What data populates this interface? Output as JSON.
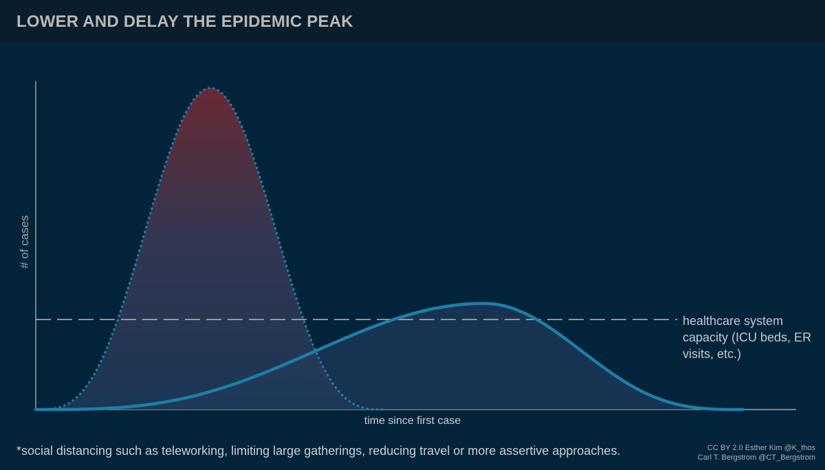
{
  "header": {
    "title": "LOWER AND DELAY THE EPIDEMIC PEAK"
  },
  "chart_data": {
    "type": "area",
    "title": "LOWER AND DELAY THE EPIDEMIC PEAK",
    "xlabel": "time since first case",
    "ylabel": "# of cases",
    "xlim": [
      0,
      100
    ],
    "ylim": [
      0,
      100
    ],
    "grid": false,
    "series": [
      {
        "style": "dotted",
        "fill": "red-to-blue gradient",
        "peak_x": 23,
        "peak_y": 100,
        "start_x": 0,
        "end_x": 46
      },
      {
        "style": "solid",
        "fill": "dark blue",
        "peak_x": 59,
        "peak_y": 33,
        "start_x": 0,
        "end_x": 93
      }
    ],
    "capacity_line": {
      "y": 28,
      "style": "dashed",
      "label": "healthcare system capacity (ICU beds, ER visits, etc.)"
    }
  },
  "capacity_label": "healthcare system capacity (ICU beds, ER visits, etc.)",
  "footnote": "*social distancing such as teleworking, limiting large gatherings, reducing travel or more assertive approaches.",
  "credit": {
    "line1": "CC BY 2.0  Esther Kim  @K_thos",
    "line2": "Carl T. Bergstrom  @CT_Bergstrom"
  },
  "colors": {
    "background": "#03233a",
    "header": "#0b1c2a",
    "curve": "#1d7fa6",
    "peak_fill_top": "#7a2a32",
    "fill_bottom": "#1e3a5a",
    "capacity_line": "#a9b0b4"
  }
}
